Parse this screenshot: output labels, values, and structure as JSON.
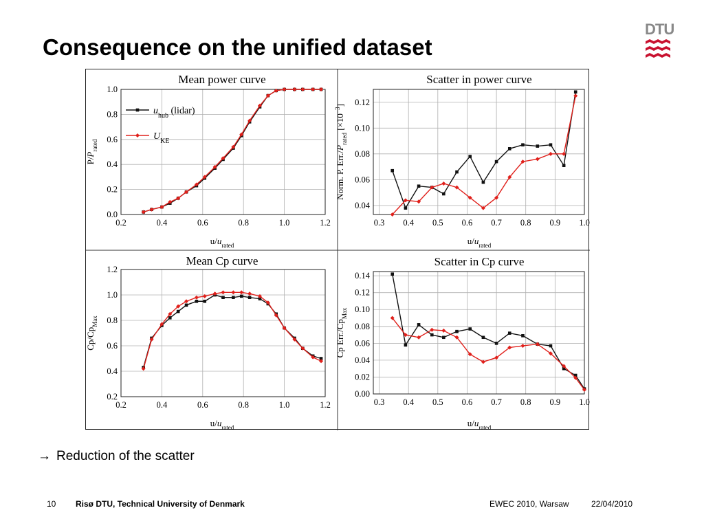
{
  "slide": {
    "title": "Consequence on the unified dataset",
    "bullet_arrow": "→",
    "bullet": "Reduction of the scatter",
    "page_number": "10",
    "organization": "Risø DTU, Technical University of Denmark",
    "event": "EWEC 2010, Warsaw",
    "date": "22/04/2010",
    "logo_text": "DTU"
  },
  "colors": {
    "series_lidar": "#111111",
    "series_ke": "#e0201b",
    "grid": "#b0b0b0",
    "logo_red": "#c8102e"
  },
  "chart_data": [
    {
      "type": "line",
      "title": "Mean power curve",
      "xlabel": "u/u_rated",
      "ylabel": "P/P_rated",
      "xlim": [
        0.2,
        1.2
      ],
      "ylim": [
        0.0,
        1.0
      ],
      "xticks": [
        "0.2",
        "0.4",
        "0.6",
        "0.8",
        "1.0",
        "1.2"
      ],
      "yticks": [
        "0.0",
        "0.2",
        "0.4",
        "0.6",
        "0.8",
        "1.0"
      ],
      "grid": true,
      "legend": "top-left",
      "x": [
        0.31,
        0.35,
        0.4,
        0.44,
        0.48,
        0.52,
        0.57,
        0.61,
        0.66,
        0.7,
        0.75,
        0.79,
        0.83,
        0.88,
        0.92,
        0.96,
        1.0,
        1.05,
        1.09,
        1.14,
        1.18
      ],
      "series": [
        {
          "name": "u_hub (lidar)",
          "color": "#111111",
          "marker": "square",
          "values": [
            0.02,
            0.04,
            0.06,
            0.09,
            0.13,
            0.18,
            0.23,
            0.29,
            0.37,
            0.44,
            0.53,
            0.63,
            0.74,
            0.86,
            0.95,
            0.99,
            1.0,
            1.0,
            1.0,
            1.0,
            1.0
          ]
        },
        {
          "name": "U_KE",
          "color": "#e0201b",
          "marker": "diamond",
          "values": [
            0.02,
            0.04,
            0.06,
            0.1,
            0.13,
            0.18,
            0.24,
            0.3,
            0.38,
            0.45,
            0.54,
            0.64,
            0.75,
            0.87,
            0.95,
            0.99,
            1.0,
            1.0,
            1.0,
            1.0,
            1.0
          ]
        }
      ]
    },
    {
      "type": "line",
      "title": "Scatter in power curve",
      "xlabel": "u/u_rated",
      "ylabel": "Norm. P. Err./P_rated [×10⁻³]",
      "xlim": [
        0.28,
        1.0
      ],
      "ylim": [
        0.033,
        0.13
      ],
      "xticks": [
        "0.3",
        "0.4",
        "0.5",
        "0.6",
        "0.7",
        "0.8",
        "0.9",
        "1.0"
      ],
      "yticks": [
        "0.04",
        "0.06",
        "0.08",
        "0.10",
        "0.12"
      ],
      "grid": true,
      "x": [
        0.345,
        0.39,
        0.435,
        0.48,
        0.52,
        0.565,
        0.61,
        0.655,
        0.7,
        0.745,
        0.79,
        0.84,
        0.885,
        0.93,
        0.97
      ],
      "series": [
        {
          "color": "#111111",
          "marker": "square",
          "values": [
            0.067,
            0.038,
            0.055,
            0.054,
            0.049,
            0.066,
            0.078,
            0.058,
            0.074,
            0.084,
            0.087,
            0.086,
            0.087,
            0.071,
            0.128
          ]
        },
        {
          "color": "#e0201b",
          "marker": "diamond",
          "values": [
            0.033,
            0.044,
            0.043,
            0.054,
            0.057,
            0.054,
            0.046,
            0.038,
            0.046,
            0.062,
            0.074,
            0.076,
            0.08,
            0.08,
            0.125
          ]
        }
      ]
    },
    {
      "type": "line",
      "title": "Mean Cp curve",
      "xlabel": "u/u_rated",
      "ylabel": "Cp/Cp_Max",
      "xlim": [
        0.2,
        1.2
      ],
      "ylim": [
        0.2,
        1.2
      ],
      "xticks": [
        "0.2",
        "0.4",
        "0.6",
        "0.8",
        "1.0",
        "1.2"
      ],
      "yticks": [
        "0.2",
        "0.4",
        "0.6",
        "0.8",
        "1.0",
        "1.2"
      ],
      "grid": true,
      "x": [
        0.31,
        0.35,
        0.4,
        0.44,
        0.48,
        0.52,
        0.57,
        0.61,
        0.66,
        0.7,
        0.75,
        0.79,
        0.83,
        0.88,
        0.92,
        0.96,
        1.0,
        1.05,
        1.09,
        1.14,
        1.18
      ],
      "series": [
        {
          "color": "#111111",
          "marker": "square",
          "values": [
            0.43,
            0.66,
            0.76,
            0.82,
            0.87,
            0.92,
            0.95,
            0.95,
            1.0,
            0.98,
            0.98,
            0.99,
            0.98,
            0.97,
            0.93,
            0.85,
            0.74,
            0.66,
            0.58,
            0.52,
            0.5
          ]
        },
        {
          "color": "#e0201b",
          "marker": "diamond",
          "values": [
            0.42,
            0.65,
            0.77,
            0.85,
            0.91,
            0.95,
            0.98,
            0.99,
            1.01,
            1.02,
            1.02,
            1.02,
            1.01,
            0.99,
            0.94,
            0.84,
            0.74,
            0.65,
            0.58,
            0.51,
            0.48
          ]
        }
      ]
    },
    {
      "type": "line",
      "title": "Scatter in Cp curve",
      "xlabel": "u/u_rated",
      "ylabel": "Cp Err./Cp_Max",
      "xlim": [
        0.28,
        1.0
      ],
      "ylim": [
        0.0,
        0.145
      ],
      "xticks": [
        "0.3",
        "0.4",
        "0.5",
        "0.6",
        "0.7",
        "0.8",
        "0.9",
        "1.0"
      ],
      "yticks": [
        "0.00",
        "0.02",
        "0.04",
        "0.06",
        "0.08",
        "0.10",
        "0.12",
        "0.14"
      ],
      "grid": true,
      "x": [
        0.345,
        0.39,
        0.435,
        0.48,
        0.52,
        0.565,
        0.61,
        0.655,
        0.7,
        0.745,
        0.79,
        0.84,
        0.885,
        0.93,
        0.97,
        1.0
      ],
      "series": [
        {
          "color": "#111111",
          "marker": "square",
          "values": [
            0.142,
            0.058,
            0.082,
            0.07,
            0.067,
            0.074,
            0.077,
            0.067,
            0.06,
            0.072,
            0.069,
            0.059,
            0.057,
            0.03,
            0.022,
            0.006
          ]
        },
        {
          "color": "#e0201b",
          "marker": "diamond",
          "values": [
            0.09,
            0.07,
            0.067,
            0.076,
            0.075,
            0.067,
            0.047,
            0.038,
            0.043,
            0.055,
            0.057,
            0.059,
            0.048,
            0.033,
            0.019,
            0.005
          ]
        }
      ]
    }
  ]
}
